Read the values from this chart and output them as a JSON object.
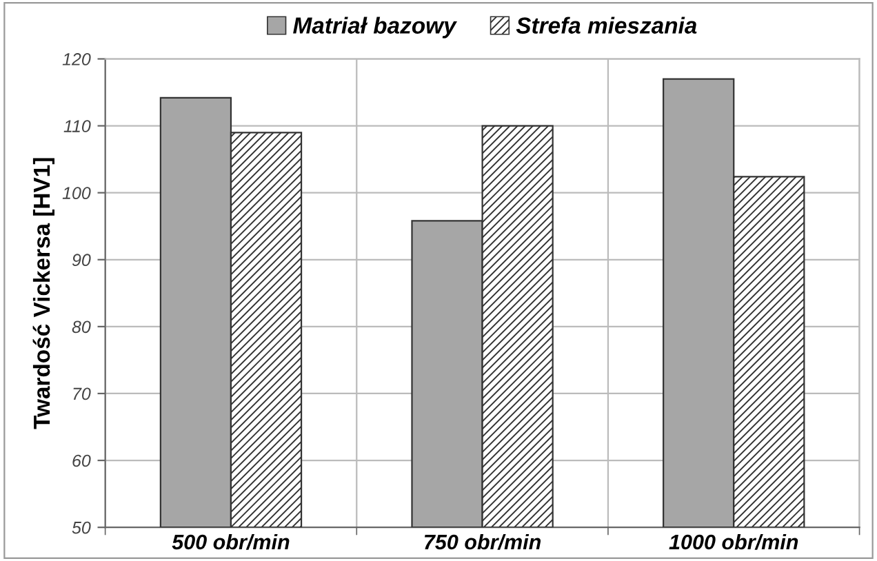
{
  "chart_data": {
    "type": "bar",
    "ylabel": "Twardość Vickersa [HV1]",
    "categories": [
      "500 obr/min",
      "750 obr/min",
      "1000 obr/min"
    ],
    "series": [
      {
        "name": "Matriał bazowy",
        "color": "#a6a6a6",
        "values": [
          114.2,
          95.8,
          117
        ]
      },
      {
        "name": "Strefa mieszania",
        "color": "#333333",
        "values": [
          109,
          110,
          102.4
        ]
      }
    ],
    "ylim": [
      50,
      120
    ],
    "yticks": [
      50,
      60,
      70,
      80,
      90,
      100,
      110,
      120
    ],
    "grid": true,
    "legend": "top"
  }
}
